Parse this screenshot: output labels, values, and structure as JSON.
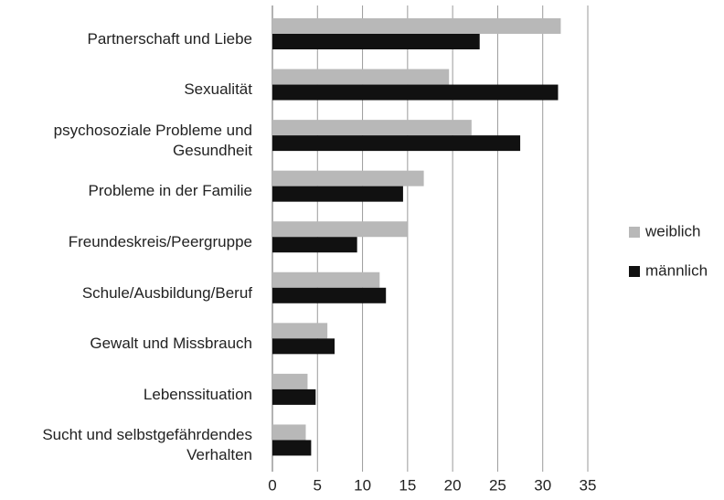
{
  "chart_data": {
    "type": "bar",
    "orientation": "horizontal",
    "categories": [
      "Partnerschaft und Liebe",
      "Sexualität",
      "psychosoziale Probleme und\nGesundheit",
      "Probleme in der Familie",
      "Freundeskreis/Peergruppe",
      "Schule/Ausbildung/Beruf",
      "Gewalt und Missbrauch",
      "Lebenssituation",
      "Sucht und selbstgefährdendes\nVerhalten"
    ],
    "series": [
      {
        "name": "weiblich",
        "color": "#b8b8b8",
        "values": [
          32.0,
          19.6,
          22.1,
          16.8,
          15.0,
          11.9,
          6.1,
          3.9,
          3.7
        ]
      },
      {
        "name": "männlich",
        "color": "#111111",
        "values": [
          23.0,
          31.7,
          27.5,
          14.5,
          9.4,
          12.6,
          6.9,
          4.8,
          4.3
        ]
      }
    ],
    "xlim": [
      0,
      35
    ],
    "xticks": [
      0,
      5,
      10,
      15,
      20,
      25,
      30,
      35
    ],
    "grid": true,
    "legend": "right"
  }
}
